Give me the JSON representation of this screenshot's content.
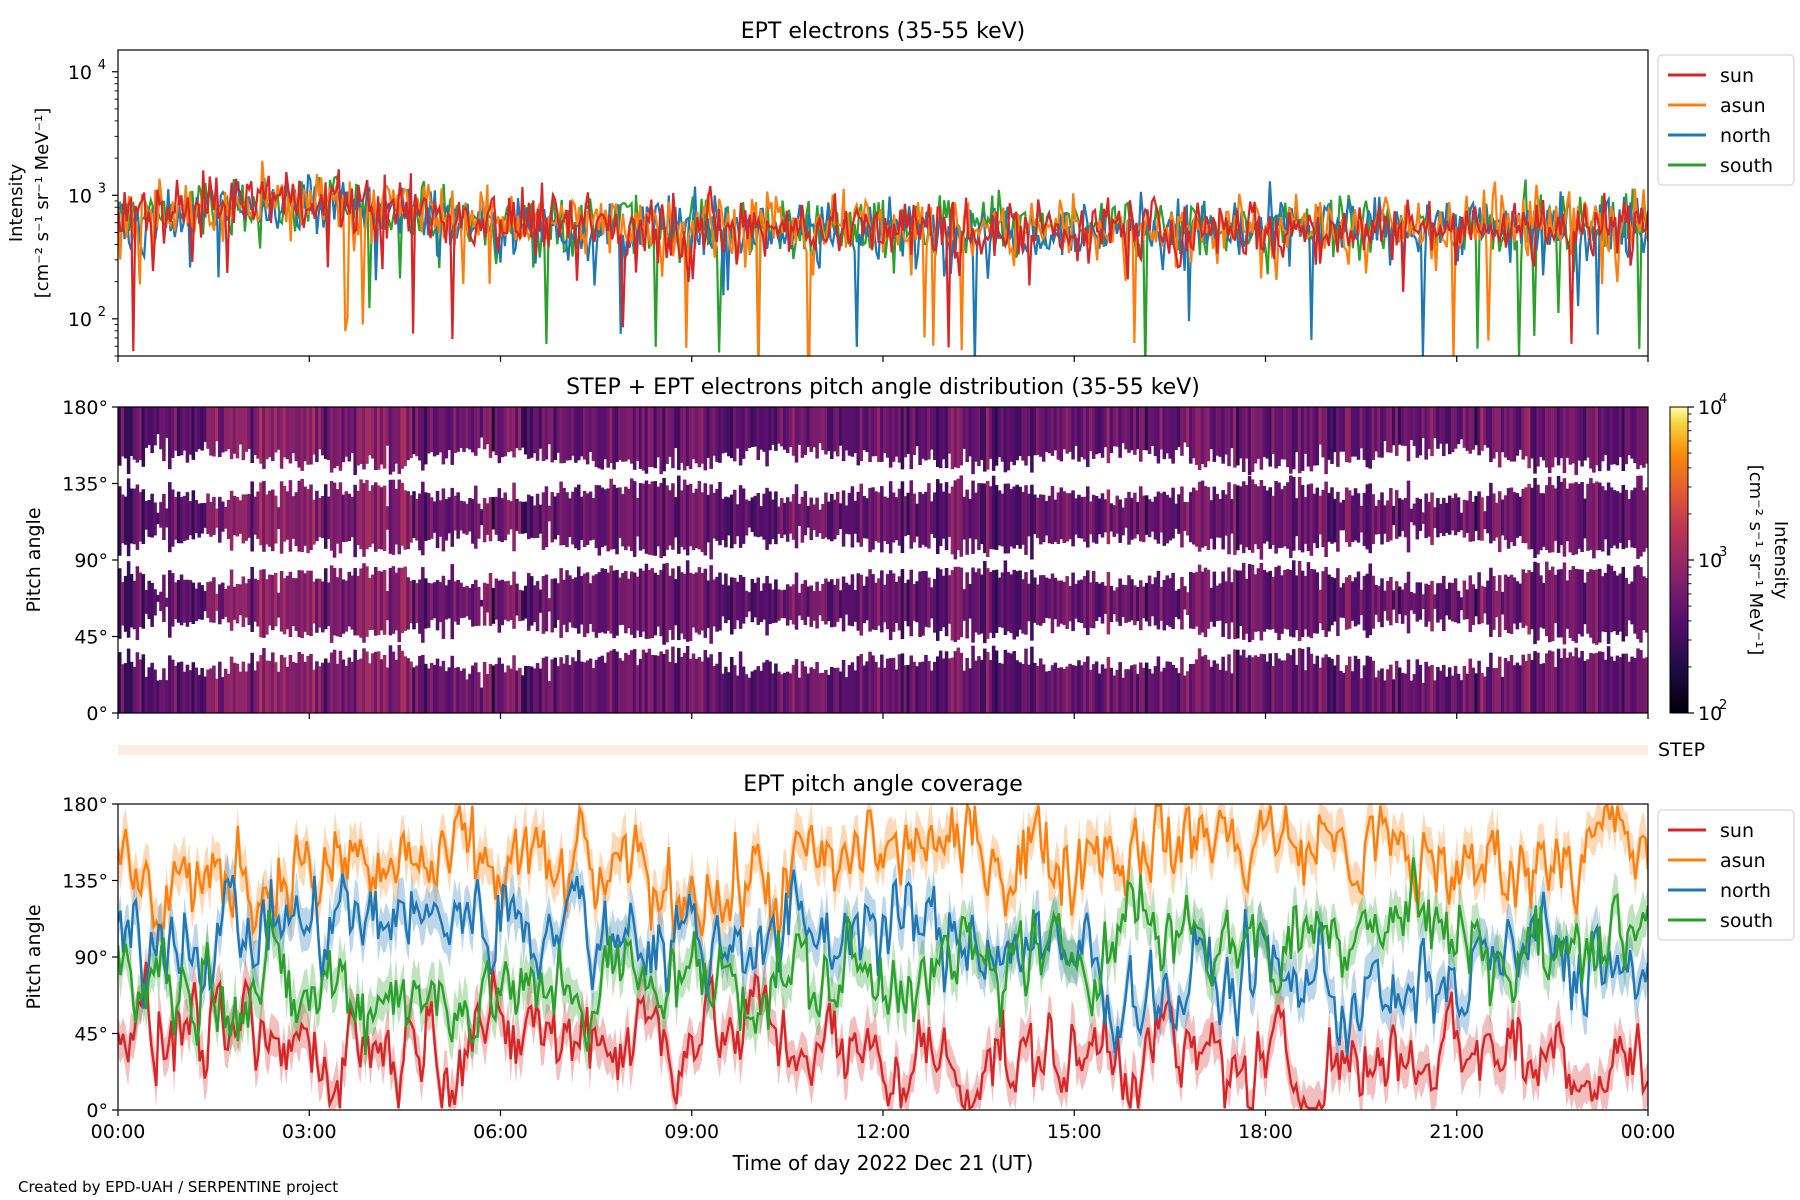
{
  "figure": {
    "credit": "Created by EPD-UAH / SERPENTINE project"
  },
  "chart_data": [
    {
      "type": "line",
      "title": "EPT electrons (35-55 keV)",
      "ylabel_line1": "Intensity",
      "ylabel_line2": "[cm⁻² s⁻¹ sr⁻¹ MeV⁻¹]",
      "yscale": "log",
      "ylim": [
        50,
        15000
      ],
      "yticks": [
        {
          "value": 100,
          "base": "10",
          "exp": "2"
        },
        {
          "value": 1000,
          "base": "10",
          "exp": "3"
        },
        {
          "value": 10000,
          "base": "10",
          "exp": "4"
        }
      ],
      "x_hours": [
        0,
        24
      ],
      "legend_position": "outside-right",
      "series": [
        {
          "name": "south",
          "color": "#2ca02c",
          "baseline": [
            [
              0,
              650
            ],
            [
              3,
              900
            ],
            [
              6,
              600
            ],
            [
              12,
              550
            ],
            [
              18,
              560
            ],
            [
              24,
              600
            ]
          ]
        },
        {
          "name": "north",
          "color": "#1f77b4",
          "baseline": [
            [
              0,
              640
            ],
            [
              3,
              880
            ],
            [
              6,
              580
            ],
            [
              12,
              540
            ],
            [
              18,
              550
            ],
            [
              24,
              590
            ]
          ]
        },
        {
          "name": "asun",
          "color": "#ff7f0e",
          "baseline": [
            [
              0,
              660
            ],
            [
              3,
              920
            ],
            [
              6,
              620
            ],
            [
              12,
              560
            ],
            [
              18,
              570
            ],
            [
              24,
              610
            ]
          ]
        },
        {
          "name": "sun",
          "color": "#d62728",
          "baseline": [
            [
              0,
              630
            ],
            [
              2.5,
              1000
            ],
            [
              4,
              800
            ],
            [
              6,
              600
            ],
            [
              12,
              530
            ],
            [
              18,
              540
            ],
            [
              24,
              580
            ]
          ]
        }
      ],
      "legend_order": [
        "sun",
        "asun",
        "north",
        "south"
      ]
    },
    {
      "type": "heatmap",
      "title": "STEP + EPT electrons pitch angle distribution (35-55 keV)",
      "ylabel": "Pitch angle",
      "ylim": [
        0,
        180
      ],
      "yticks": [
        "0°",
        "45°",
        "90°",
        "135°",
        "180°"
      ],
      "colorbar": {
        "label_line1": "Intensity",
        "label_line2": "[cm⁻² s⁻¹ sr⁻¹ MeV⁻¹]",
        "scale": "log",
        "range": [
          100,
          10000
        ],
        "ticks": [
          {
            "value": 100,
            "base": "10",
            "exp": "2"
          },
          {
            "value": 1000,
            "base": "10",
            "exp": "3"
          },
          {
            "value": 10000,
            "base": "10",
            "exp": "4"
          }
        ],
        "colormap": "inferno"
      },
      "gap_centers_deg": [
        40,
        90,
        140
      ],
      "typical_intensity": 500
    },
    {
      "type": "bar",
      "label": "STEP",
      "color": "#fdece6",
      "x_hours": [
        0,
        24
      ]
    },
    {
      "type": "line",
      "title": "EPT pitch angle coverage",
      "ylabel": "Pitch angle",
      "ylim": [
        0,
        180
      ],
      "yticks": [
        "0°",
        "45°",
        "90°",
        "135°",
        "180°"
      ],
      "xlabel": "Time of day 2022 Dec 21 (UT)",
      "xticks": [
        "00:00",
        "03:00",
        "06:00",
        "09:00",
        "12:00",
        "15:00",
        "18:00",
        "21:00",
        "00:00"
      ],
      "legend_position": "outside-right",
      "series": [
        {
          "name": "sun",
          "color": "#d62728",
          "band": "#d62728",
          "profile": [
            [
              0,
              50
            ],
            [
              3,
              35
            ],
            [
              6,
              45
            ],
            [
              9,
              45
            ],
            [
              10,
              50
            ],
            [
              12,
              25
            ],
            [
              15,
              30
            ],
            [
              16,
              40
            ],
            [
              18,
              20
            ],
            [
              20,
              30
            ],
            [
              21,
              40
            ],
            [
              23,
              30
            ],
            [
              24,
              25
            ]
          ]
        },
        {
          "name": "asun",
          "color": "#ff7f0e",
          "band": "#ff7f0e",
          "profile": [
            [
              0,
              130
            ],
            [
              3,
              140
            ],
            [
              6,
              145
            ],
            [
              9,
              130
            ],
            [
              10,
              130
            ],
            [
              12,
              155
            ],
            [
              15,
              150
            ],
            [
              16,
              160
            ],
            [
              18,
              160
            ],
            [
              20,
              150
            ],
            [
              21,
              140
            ],
            [
              23,
              155
            ],
            [
              24,
              160
            ]
          ]
        },
        {
          "name": "north",
          "color": "#1f77b4",
          "band": "#1f77b4",
          "profile": [
            [
              0,
              100
            ],
            [
              3,
              110
            ],
            [
              6,
              115
            ],
            [
              9,
              100
            ],
            [
              10,
              100
            ],
            [
              12,
              110
            ],
            [
              15,
              90
            ],
            [
              16,
              65
            ],
            [
              18,
              85
            ],
            [
              20,
              60
            ],
            [
              21,
              75
            ],
            [
              22,
              95
            ],
            [
              23,
              90
            ],
            [
              24,
              70
            ]
          ]
        },
        {
          "name": "south",
          "color": "#2ca02c",
          "band": "#2ca02c",
          "profile": [
            [
              0,
              80
            ],
            [
              3,
              70
            ],
            [
              6,
              65
            ],
            [
              9,
              80
            ],
            [
              10,
              75
            ],
            [
              12,
              80
            ],
            [
              15,
              90
            ],
            [
              16,
              115
            ],
            [
              18,
              95
            ],
            [
              20,
              120
            ],
            [
              21,
              105
            ],
            [
              22,
              85
            ],
            [
              23,
              100
            ],
            [
              24,
              115
            ]
          ]
        }
      ],
      "legend_order": [
        "sun",
        "asun",
        "north",
        "south"
      ]
    }
  ]
}
